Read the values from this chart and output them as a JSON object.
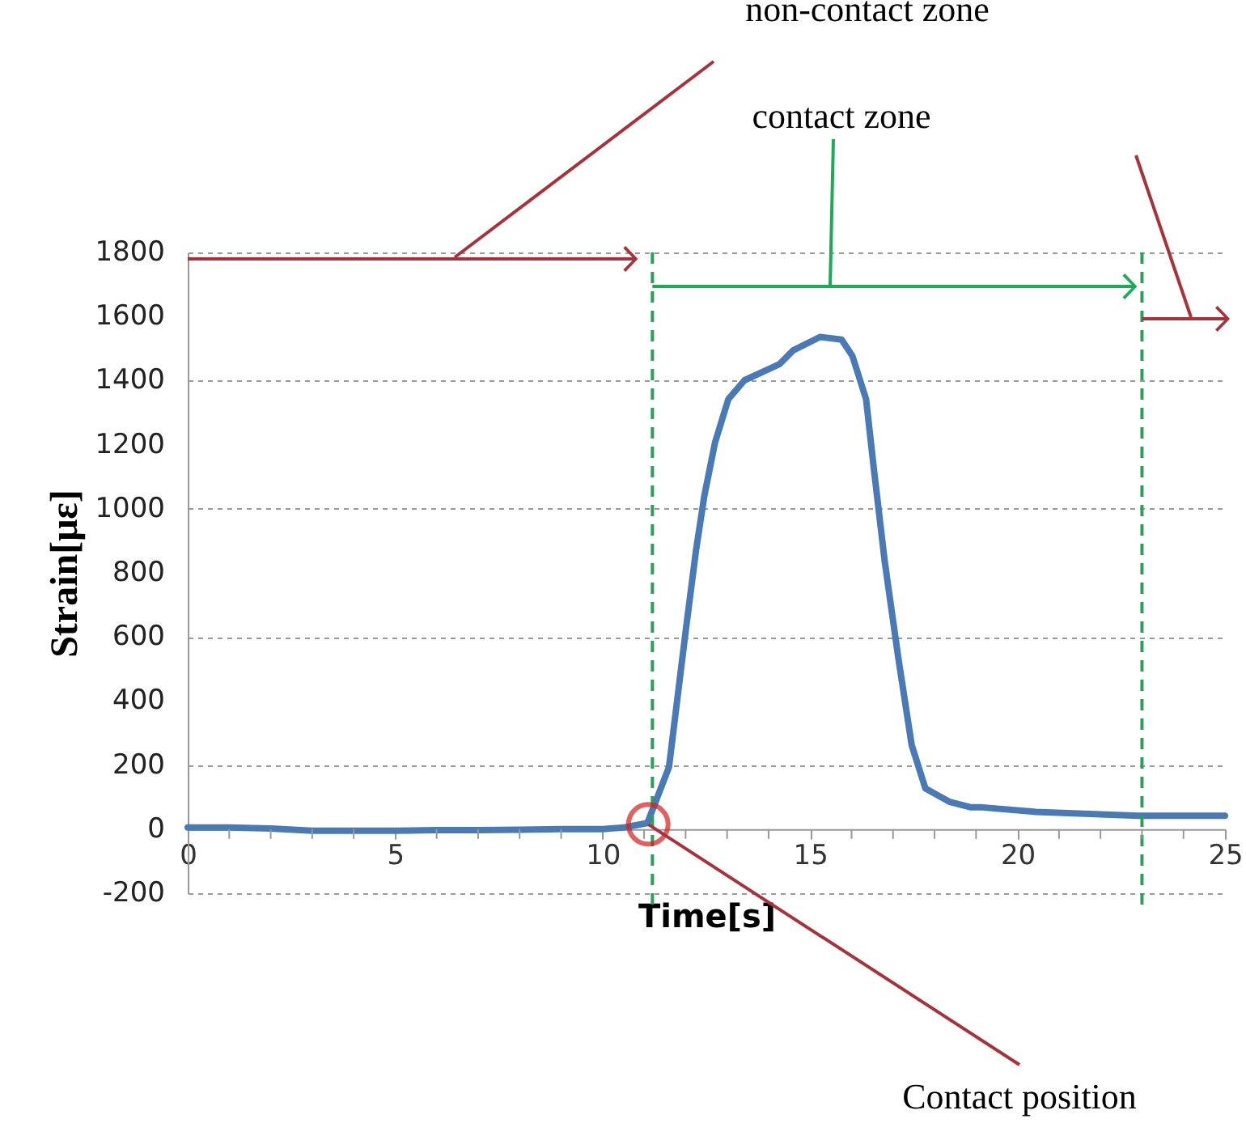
{
  "chart_data": {
    "type": "line",
    "xlabel": "Time[s]",
    "ylabel": "Strain[με]",
    "series": [
      {
        "color": "#4a7ab5",
        "x": [
          0,
          1,
          2,
          3,
          4,
          5,
          6,
          7,
          8,
          9,
          10,
          10.5,
          11.08,
          11.6,
          12.0,
          12.25,
          12.45,
          12.71,
          13.03,
          13.42,
          14.07,
          14.27,
          14.59,
          15.24,
          15.76,
          16.02,
          16.35,
          16.54,
          16.8,
          17.13,
          17.45,
          17.78,
          18.37,
          18.88,
          19.15,
          20.44,
          22.91,
          25
        ],
        "values": [
          5,
          5,
          2,
          -5,
          -5,
          -5,
          -3,
          -3,
          -2,
          0,
          0,
          5,
          19,
          194,
          616,
          869,
          1039,
          1207,
          1342,
          1401,
          1440,
          1452,
          1494,
          1536,
          1528,
          1477,
          1342,
          1122,
          835,
          532,
          262,
          127,
          85,
          68,
          68,
          54,
          42,
          42
        ]
      }
    ],
    "xlim": [
      0,
      25
    ],
    "xticks": [
      0,
      {
        "value": 1,
        "label": null
      },
      {
        "value": 2,
        "label": null
      },
      {
        "value": 3,
        "label": null
      },
      {
        "value": 4,
        "label": null
      },
      5,
      {
        "value": 6,
        "label": null
      },
      {
        "value": 7,
        "label": null
      },
      {
        "value": 8,
        "label": null
      },
      {
        "value": 9,
        "label": null
      },
      10,
      {
        "value": 11,
        "label": null
      },
      {
        "value": 12,
        "label": null
      },
      {
        "value": 13,
        "label": null
      },
      {
        "value": 14,
        "label": null
      },
      15,
      {
        "value": 16,
        "label": null
      },
      {
        "value": 17,
        "label": null
      },
      {
        "value": 18,
        "label": null
      },
      {
        "value": 19,
        "label": null
      },
      20,
      {
        "value": 21,
        "label": null
      },
      {
        "value": 22,
        "label": null
      },
      {
        "value": 23,
        "label": null
      },
      {
        "value": 24,
        "label": null
      },
      25
    ],
    "ylim": [
      -200,
      1800
    ],
    "yticks": [
      -200,
      0,
      200,
      400,
      600,
      800,
      1000,
      1200,
      1400,
      1600,
      1800
    ],
    "grid": "y",
    "line_style": "solid",
    "ref_lines": [
      {
        "axis": "x",
        "value": 11.2,
        "color": "#2e9e5b",
        "line_style": "dashed"
      },
      {
        "axis": "x",
        "value": 23,
        "color": "#2e9e5b",
        "line_style": "dashed"
      }
    ],
    "annotations": [
      "non-contact zone",
      "contact zone",
      {
        "text": "Contact position",
        "x": 11.1,
        "y": 15
      }
    ]
  }
}
